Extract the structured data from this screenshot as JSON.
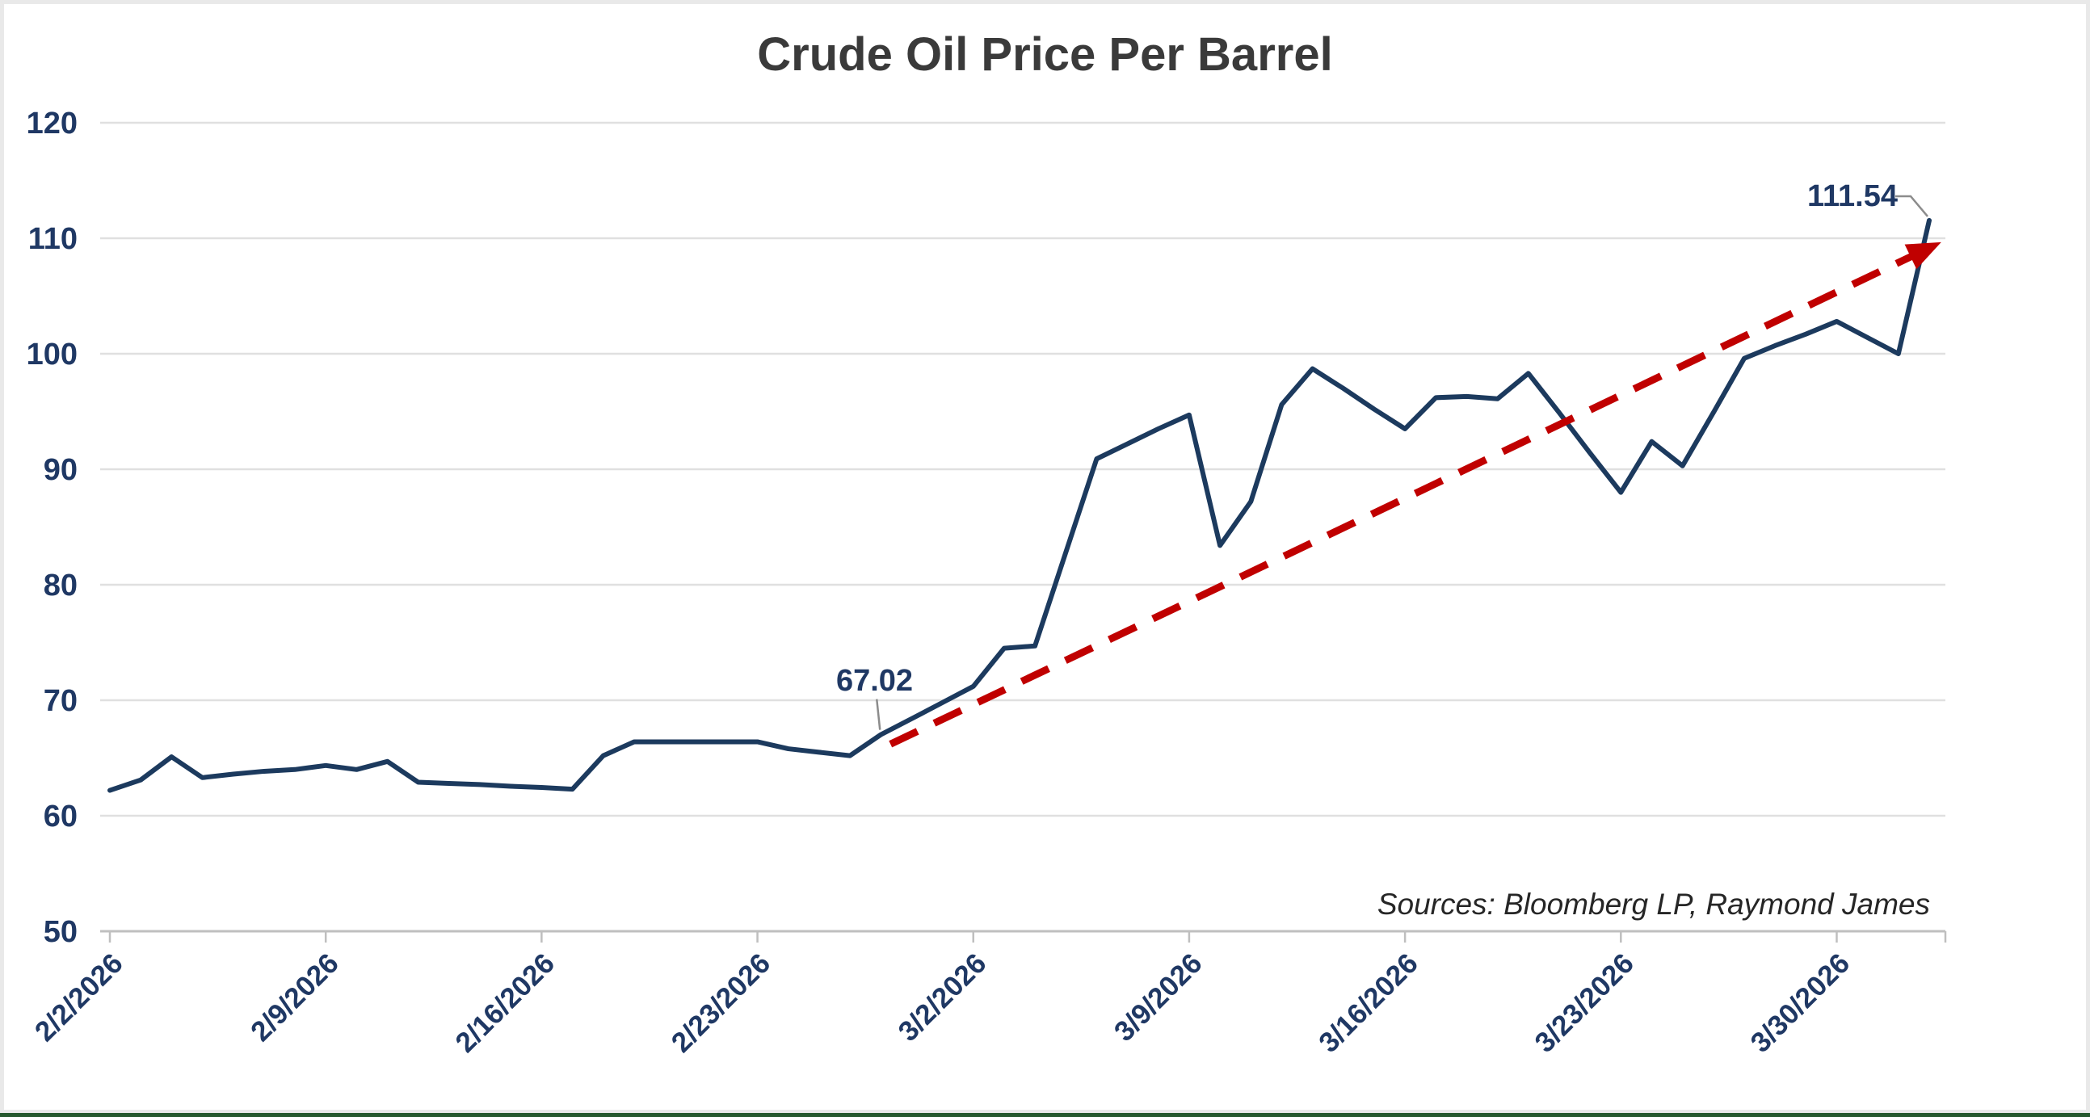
{
  "frame": {
    "background": "#ffffff",
    "border_color": "#e9e9e9",
    "bottom_bar_color": "#26592f"
  },
  "chart_data": {
    "type": "line",
    "title": "Crude Oil Price Per Barrel",
    "xlabel": "",
    "ylabel": "",
    "ylim": [
      50,
      120
    ],
    "y_ticks": [
      50,
      60,
      70,
      80,
      90,
      100,
      110,
      120
    ],
    "x_tick_labels": [
      "2/2/2026",
      "2/9/2026",
      "2/16/2026",
      "2/23/2026",
      "3/2/2026",
      "3/9/2026",
      "3/16/2026",
      "3/23/2026",
      "3/30/2026"
    ],
    "grid": "horizontal",
    "legend": "none",
    "series": [
      {
        "name": "Crude oil price per barrel (USD)",
        "color": "#1c3a5e",
        "dates": [
          "2/2/2026",
          "2/3/2026",
          "2/4/2026",
          "2/5/2026",
          "2/6/2026",
          "2/7/2026",
          "2/8/2026",
          "2/9/2026",
          "2/10/2026",
          "2/11/2026",
          "2/12/2026",
          "2/13/2026",
          "2/14/2026",
          "2/15/2026",
          "2/16/2026",
          "2/17/2026",
          "2/18/2026",
          "2/19/2026",
          "2/20/2026",
          "2/21/2026",
          "2/22/2026",
          "2/23/2026",
          "2/24/2026",
          "2/25/2026",
          "2/26/2026",
          "2/27/2026",
          "2/28/2026",
          "3/1/2026",
          "3/2/2026",
          "3/3/2026",
          "3/4/2026",
          "3/5/2026",
          "3/6/2026",
          "3/7/2026",
          "3/8/2026",
          "3/9/2026",
          "3/10/2026",
          "3/11/2026",
          "3/12/2026",
          "3/13/2026",
          "3/14/2026",
          "3/15/2026",
          "3/16/2026",
          "3/17/2026",
          "3/18/2026",
          "3/19/2026",
          "3/20/2026",
          "3/21/2026",
          "3/22/2026",
          "3/23/2026",
          "3/24/2026",
          "3/25/2026",
          "3/26/2026",
          "3/27/2026",
          "3/28/2026",
          "3/29/2026",
          "3/30/2026",
          "3/31/2026",
          "4/1/2026",
          "4/2/2026"
        ],
        "values": [
          62.2,
          63.1,
          65.1,
          63.3,
          63.6,
          63.85,
          64.0,
          64.35,
          64.0,
          64.7,
          62.9,
          62.8,
          62.7,
          62.55,
          62.45,
          62.3,
          65.2,
          66.4,
          66.4,
          66.4,
          66.4,
          66.4,
          65.8,
          65.5,
          65.2,
          67.02,
          68.4,
          69.8,
          71.2,
          74.5,
          74.7,
          82.8,
          90.9,
          92.2,
          93.5,
          94.7,
          83.4,
          87.2,
          95.6,
          98.7,
          97.0,
          95.2,
          93.5,
          96.2,
          96.3,
          96.1,
          98.3,
          94.9,
          91.4,
          88.0,
          92.4,
          90.3,
          94.9,
          99.6,
          100.7,
          101.7,
          102.8,
          101.4,
          100.0,
          111.54
        ]
      }
    ],
    "trendline": {
      "style": "dashed",
      "arrow_end": true,
      "color": "#c00000",
      "start": {
        "date": "2/27/2026",
        "value": 66.2
      },
      "end": {
        "date": "4/2/2026",
        "value": 109.3
      }
    },
    "annotations": [
      {
        "label": "67.02",
        "date": "2/27/2026",
        "value": 67.02
      },
      {
        "label": "111.54",
        "date": "4/2/2026",
        "value": 111.54
      }
    ],
    "source_note": "Sources: Bloomberg LP, Raymond James",
    "colors": {
      "title": "#3a3a3a",
      "axis_labels": "#1f3864",
      "annotation_text": "#1f3864",
      "grid": "#e0e0e0",
      "axis": "#bfbfbf",
      "trend": "#c00000",
      "callout": "#8c8c8c",
      "source_text": "#262626"
    }
  }
}
